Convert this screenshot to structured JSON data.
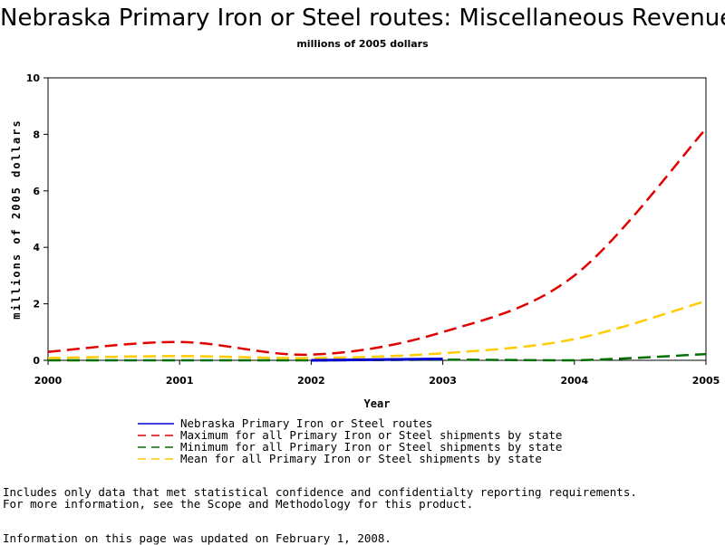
{
  "chart_data": {
    "type": "line",
    "title": "Nebraska Primary Iron or Steel routes: Miscellaneous Revenue",
    "subtitle": "millions of 2005 dollars",
    "xlabel": "Year",
    "ylabel": "millions of 2005 dollars",
    "x": [
      2000,
      2001,
      2002,
      2003,
      2004,
      2005
    ],
    "xlim": [
      2000,
      2005
    ],
    "ylim": [
      0,
      10
    ],
    "yticks": [
      0,
      2,
      4,
      6,
      8,
      10
    ],
    "grid": false,
    "legend_position": "bottom",
    "series": [
      {
        "name": "Nebraska Primary Iron or Steel routes",
        "color": "#0000cc",
        "style": "solid",
        "points": [
          [
            2002,
            0.0
          ],
          [
            2003,
            0.05
          ]
        ]
      },
      {
        "name": "Maximum for all Primary Iron or Steel shipments by state",
        "color": "#e00000",
        "style": "dashed",
        "points": [
          [
            2000,
            0.3
          ],
          [
            2001,
            0.65
          ],
          [
            2002,
            0.2
          ],
          [
            2003,
            1.0
          ],
          [
            2004,
            3.0
          ],
          [
            2005,
            8.2
          ]
        ]
      },
      {
        "name": "Minimum for all Primary Iron or Steel shipments by state",
        "color": "#007000",
        "style": "dashed",
        "points": [
          [
            2000,
            0.0
          ],
          [
            2001,
            0.0
          ],
          [
            2002,
            0.0
          ],
          [
            2003,
            0.02
          ],
          [
            2004,
            0.0
          ],
          [
            2005,
            0.22
          ]
        ]
      },
      {
        "name": "Mean for all Primary Iron or Steel shipments by state",
        "color": "#ffcc00",
        "style": "dashed",
        "points": [
          [
            2000,
            0.08
          ],
          [
            2001,
            0.15
          ],
          [
            2002,
            0.08
          ],
          [
            2003,
            0.25
          ],
          [
            2004,
            0.75
          ],
          [
            2005,
            2.1
          ]
        ]
      }
    ]
  },
  "footnotes": {
    "line1": "Includes only data that met statistical confidence and confidentialty reporting requirements.",
    "line2": "For more information, see the Scope and Methodology for this product.",
    "line3": "Information on this page was updated on February 1, 2008."
  }
}
